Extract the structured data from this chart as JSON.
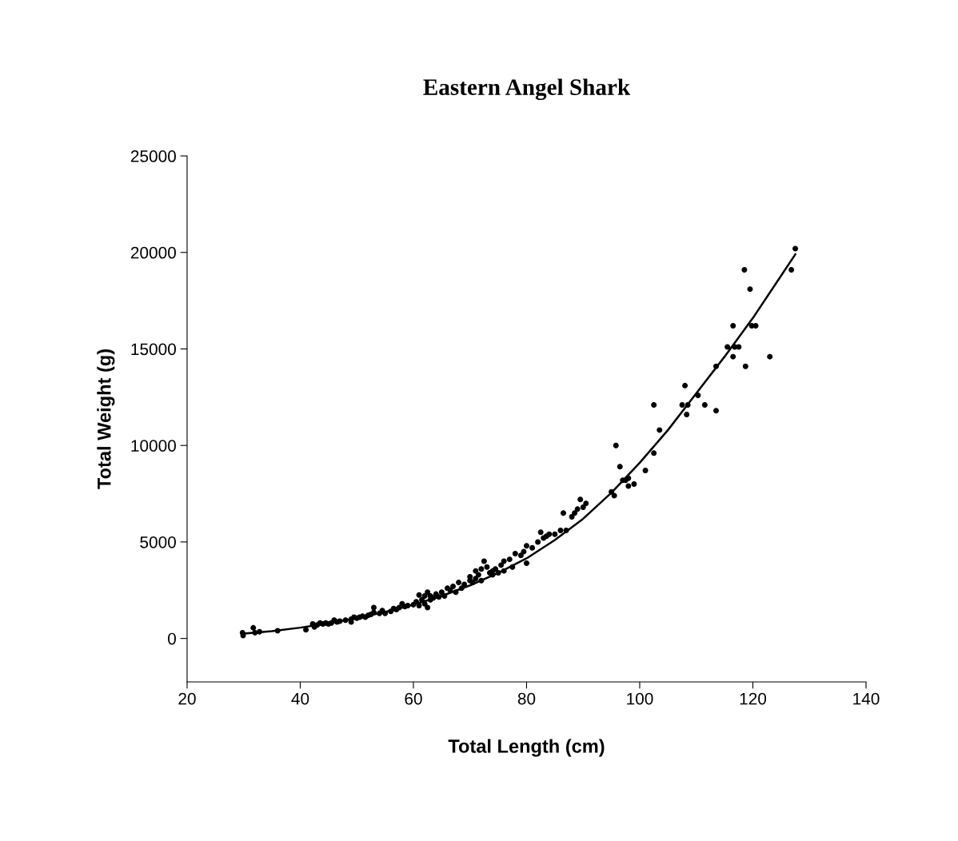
{
  "chart_data": {
    "type": "scatter",
    "title": "Eastern Angel Shark",
    "xlabel": "Total Length (cm)",
    "ylabel": "Total Weight (g)",
    "xlim": [
      20,
      140
    ],
    "xticks": [
      20,
      40,
      60,
      80,
      100,
      120,
      140
    ],
    "ylim": [
      -2250,
      25000
    ],
    "yticks": [
      0,
      5000,
      10000,
      15000,
      20000,
      25000
    ],
    "grid": false,
    "legend": false,
    "marker": "circle",
    "series": [
      {
        "color": "#000000",
        "x": [
          29.8,
          29.9,
          31.7,
          32,
          32.8,
          36,
          41,
          42.2,
          42.5,
          43,
          43.5,
          44,
          44.5,
          45,
          45.5,
          46,
          46.5,
          47,
          48,
          49,
          49,
          49.5,
          50,
          50.5,
          51,
          51.5,
          52,
          52.5,
          53,
          53,
          54,
          54.5,
          55,
          56,
          56.5,
          57,
          57.5,
          58,
          58.5,
          59,
          60,
          60.5,
          61,
          61,
          61.5,
          62,
          62,
          62.5,
          62.5,
          63,
          63,
          63.5,
          64,
          64.5,
          65,
          65.5,
          66,
          66.5,
          67,
          67.5,
          68,
          68.5,
          69,
          70,
          70,
          70.5,
          71,
          71,
          71.5,
          72,
          72,
          72.5,
          73,
          73.5,
          74,
          74,
          74.5,
          75,
          75.5,
          76,
          76,
          77,
          77.5,
          78,
          79,
          79.5,
          80,
          80,
          81,
          82,
          82.5,
          83,
          83.5,
          84,
          85,
          86,
          86.5,
          87,
          88,
          88.5,
          89,
          89.5,
          90,
          90.5,
          95,
          95.5,
          95.8,
          96.5,
          97,
          97.5,
          98,
          98,
          99,
          101,
          102.5,
          102.5,
          103.5,
          107.5,
          108,
          108.3,
          108.5,
          110.3,
          111.5,
          113.5,
          113.5,
          115.5,
          116.5,
          116.5,
          116.8,
          117.5,
          118.5,
          118.7,
          119.5,
          119.8,
          120.5,
          123,
          126.8,
          127.5
        ],
        "values": [
          300,
          150,
          550,
          300,
          350,
          400,
          450,
          750,
          600,
          700,
          800,
          750,
          800,
          750,
          800,
          950,
          850,
          900,
          950,
          850,
          1000,
          1100,
          1050,
          1100,
          1150,
          1100,
          1200,
          1250,
          1350,
          1600,
          1300,
          1450,
          1300,
          1400,
          1550,
          1500,
          1600,
          1800,
          1650,
          1700,
          1750,
          1900,
          1700,
          2250,
          2000,
          1800,
          2200,
          1600,
          2400,
          2000,
          2200,
          2100,
          2300,
          2150,
          2400,
          2200,
          2600,
          2500,
          2700,
          2400,
          2900,
          2600,
          2800,
          3000,
          3200,
          2900,
          3100,
          3500,
          3300,
          3000,
          3600,
          4000,
          3700,
          3400,
          3500,
          3300,
          3600,
          3400,
          3800,
          4000,
          3500,
          4100,
          3700,
          4400,
          4300,
          4500,
          3900,
          4800,
          4700,
          5000,
          5500,
          5200,
          5300,
          5400,
          5400,
          5600,
          6500,
          5600,
          6300,
          6500,
          6700,
          7200,
          6800,
          7000,
          7600,
          7400,
          10000,
          8900,
          8200,
          8200,
          8300,
          7900,
          8000,
          8700,
          12100,
          9600,
          10800,
          12100,
          13100,
          11600,
          12100,
          12600,
          12100,
          14100,
          11800,
          15100,
          16200,
          14600,
          15100,
          15100,
          19100,
          14100,
          18100,
          16200,
          16200,
          14600,
          19100,
          20200
        ]
      },
      {
        "type": "line",
        "color": "#000000",
        "marker": "none",
        "line_style": "solid",
        "x": [
          30,
          35,
          40,
          45,
          50,
          55,
          60,
          65,
          70,
          75,
          80,
          85,
          90,
          95,
          100,
          105,
          110,
          115,
          120,
          125,
          127.5
        ],
        "values": [
          250,
          380,
          560,
          780,
          1050,
          1370,
          1750,
          2200,
          2750,
          3400,
          4150,
          5100,
          6200,
          7550,
          9100,
          10800,
          12700,
          14600,
          16600,
          18800,
          19900
        ]
      }
    ]
  }
}
